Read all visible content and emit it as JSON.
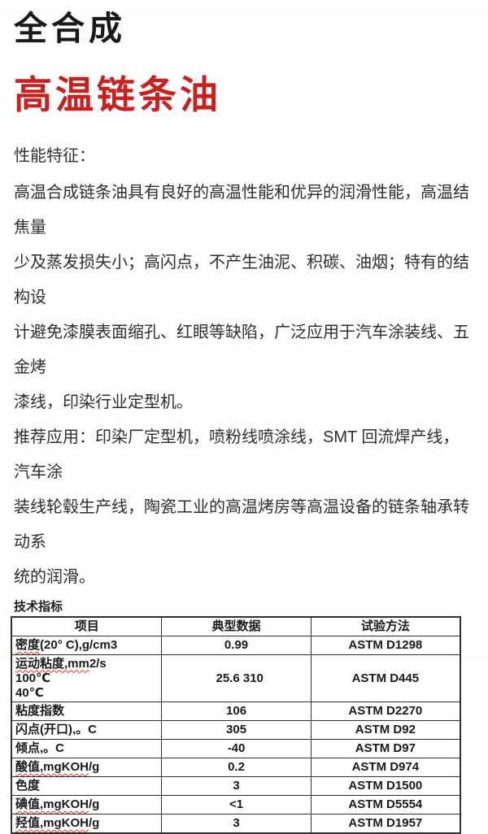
{
  "colors": {
    "title_red": "#c62222",
    "squiggle_red": "#d93025"
  },
  "titles": {
    "line1": "全合成",
    "line2": "高温链条油"
  },
  "sections": {
    "features_label": "性能特征：",
    "features_body": "高温合成链条油具有良好的高温性能和优异的润滑性能，高温结焦量\n少及蒸发损失小；高闪点，不产生油泥、积碳、油烟；特有的结构设\n计避免漆膜表面缩孔、红眼等缺陷，广泛应用于汽车涂装线、五金烤\n漆线，印染行业定型机。",
    "applications_body": "推荐应用：印染厂定型机，喷粉线喷涂线，SMT 回流焊产线，汽车涂\n装线轮毂生产线，陶瓷工业的高温烤房等高温设备的链条轴承转动系\n统的润滑。",
    "spec_label": "技术指标"
  },
  "table": {
    "headers": [
      "项目",
      "典型数据",
      "试验方法"
    ],
    "rows": [
      {
        "item_wavy": "密度",
        "item_rest": "(20° C),g/cm3",
        "value": "0.99",
        "method": "ASTM D1298"
      },
      {
        "item_wavy": "运动粘度,mm",
        "item_rest": "2/s\n100℃\n40℃",
        "value": " \n25.6\n310",
        "method": "ASTM D445"
      },
      {
        "item_wavy": "",
        "item_rest": "粘度指数",
        "value": "106",
        "method": "ASTM D2270"
      },
      {
        "item_wavy": "",
        "item_rest": "闪点(开口),。C",
        "value": "305",
        "method": "ASTM D92"
      },
      {
        "item_wavy": "",
        "item_rest": "倾点,。C",
        "value": "-40",
        "method": "ASTM D97"
      },
      {
        "item_wavy": "酸值,mgKOH",
        "item_rest": "/g",
        "value": "0.2",
        "method": "ASTM D974"
      },
      {
        "item_wavy": "",
        "item_rest": "色度",
        "value": "3",
        "method": "ASTM D1500"
      },
      {
        "item_wavy": "碘值,mgKOH",
        "item_rest": "/g",
        "value": "<1",
        "method": "ASTM D5554"
      },
      {
        "item_wavy": "羟值,mgKOH",
        "item_rest": "/g",
        "value": "3",
        "method": "ASTM D1957"
      }
    ]
  }
}
